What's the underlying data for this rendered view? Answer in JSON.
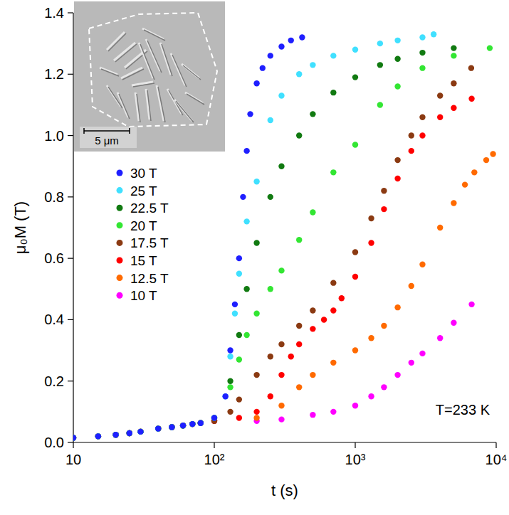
{
  "chart_data": {
    "type": "scatter",
    "x_label": "t (s)",
    "y_label": "μ₀M (T)",
    "annotation": "T=233 K",
    "inset_scale_label": "5 μm",
    "log": "x",
    "grid": false,
    "legend": "upper left",
    "marker": "circle",
    "xlim": [
      10,
      10000
    ],
    "xticks": [
      10,
      {
        "value": 100,
        "label": "10²"
      },
      {
        "value": 1000,
        "label": "10³"
      },
      {
        "value": 10000,
        "label": "10⁴"
      }
    ],
    "ylim": [
      0,
      1.4
    ],
    "yticks": [
      {
        "value": 0,
        "label": "0.0"
      },
      0.2,
      0.4,
      0.6,
      0.8,
      {
        "value": 1,
        "label": "1.0"
      },
      1.2,
      1.4
    ],
    "series": [
      {
        "name": "30 T",
        "color": "#1f1fff",
        "x": [
          10,
          15,
          20,
          25,
          30,
          40,
          50,
          60,
          70,
          80,
          100,
          120,
          130,
          140,
          150,
          160,
          170,
          180,
          200,
          220,
          250,
          300,
          350,
          420
        ],
        "values": [
          0.015,
          0.02,
          0.025,
          0.03,
          0.035,
          0.045,
          0.05,
          0.055,
          0.06,
          0.063,
          0.08,
          0.15,
          0.3,
          0.45,
          0.6,
          0.8,
          0.95,
          1.07,
          1.17,
          1.22,
          1.26,
          1.29,
          1.31,
          1.32
        ]
      },
      {
        "name": "25 T",
        "color": "#40e0ff",
        "x": [
          10,
          15,
          20,
          25,
          30,
          40,
          50,
          60,
          70,
          80,
          100,
          120,
          130,
          140,
          150,
          170,
          200,
          250,
          300,
          400,
          500,
          700,
          1000,
          1500,
          2000,
          3000,
          3600
        ],
        "values": [
          0.015,
          0.02,
          0.025,
          0.03,
          0.035,
          0.045,
          0.05,
          0.055,
          0.06,
          0.063,
          0.08,
          0.15,
          0.28,
          0.42,
          0.55,
          0.72,
          0.85,
          1.05,
          1.13,
          1.2,
          1.23,
          1.26,
          1.28,
          1.3,
          1.31,
          1.32,
          1.33
        ]
      },
      {
        "name": "22.5 T",
        "color": "#117a11",
        "x": [
          10,
          15,
          20,
          25,
          30,
          40,
          50,
          60,
          70,
          80,
          100,
          130,
          150,
          170,
          200,
          250,
          300,
          400,
          500,
          700,
          1000,
          1500,
          2000,
          3000,
          5000
        ],
        "values": [
          0.015,
          0.02,
          0.025,
          0.03,
          0.035,
          0.045,
          0.05,
          0.055,
          0.06,
          0.063,
          0.08,
          0.2,
          0.35,
          0.5,
          0.65,
          0.8,
          0.9,
          1.0,
          1.07,
          1.14,
          1.19,
          1.23,
          1.25,
          1.27,
          1.285
        ]
      },
      {
        "name": "20 T",
        "color": "#33e633",
        "x": [
          10,
          15,
          20,
          25,
          30,
          40,
          50,
          60,
          70,
          80,
          100,
          130,
          150,
          170,
          200,
          250,
          300,
          400,
          500,
          700,
          1000,
          1500,
          2000,
          3000,
          5000,
          9000
        ],
        "values": [
          0.015,
          0.02,
          0.025,
          0.03,
          0.035,
          0.045,
          0.05,
          0.055,
          0.06,
          0.063,
          0.08,
          0.18,
          0.27,
          0.35,
          0.42,
          0.5,
          0.56,
          0.66,
          0.75,
          0.88,
          0.97,
          1.1,
          1.16,
          1.22,
          1.26,
          1.285
        ]
      },
      {
        "name": "17.5 T",
        "color": "#8b3a12",
        "x": [
          10,
          15,
          20,
          25,
          30,
          40,
          50,
          60,
          70,
          80,
          100,
          130,
          150,
          200,
          250,
          300,
          400,
          500,
          700,
          1000,
          1300,
          1600,
          2000,
          2500,
          3000,
          4000,
          5000,
          6650
        ],
        "values": [
          0.015,
          0.02,
          0.025,
          0.03,
          0.035,
          0.045,
          0.05,
          0.055,
          0.06,
          0.063,
          0.07,
          0.1,
          0.14,
          0.22,
          0.28,
          0.32,
          0.38,
          0.43,
          0.52,
          0.62,
          0.73,
          0.82,
          0.92,
          1.0,
          1.06,
          1.13,
          1.17,
          1.22
        ]
      },
      {
        "name": "15 T",
        "color": "#ff0000",
        "x": [
          10,
          15,
          20,
          25,
          30,
          40,
          50,
          60,
          70,
          80,
          100,
          150,
          200,
          250,
          300,
          350,
          400,
          500,
          600,
          700,
          800,
          1000,
          1300,
          1600,
          2000,
          2500,
          3000,
          4000,
          5000,
          6700
        ],
        "values": [
          0.015,
          0.02,
          0.025,
          0.03,
          0.035,
          0.045,
          0.05,
          0.055,
          0.06,
          0.063,
          0.07,
          0.08,
          0.1,
          0.15,
          0.22,
          0.28,
          0.32,
          0.37,
          0.4,
          0.43,
          0.47,
          0.54,
          0.65,
          0.76,
          0.86,
          0.95,
          1.0,
          1.06,
          1.09,
          1.12
        ]
      },
      {
        "name": "12.5 T",
        "color": "#ff6a00",
        "x": [
          10,
          15,
          20,
          25,
          30,
          40,
          50,
          60,
          70,
          80,
          100,
          200,
          300,
          400,
          500,
          700,
          1000,
          1300,
          1600,
          2000,
          2500,
          3000,
          4000,
          5000,
          6000,
          7000,
          8500,
          9500
        ],
        "values": [
          0.015,
          0.02,
          0.025,
          0.03,
          0.035,
          0.045,
          0.05,
          0.055,
          0.06,
          0.063,
          0.07,
          0.08,
          0.12,
          0.18,
          0.22,
          0.26,
          0.3,
          0.34,
          0.38,
          0.44,
          0.51,
          0.58,
          0.7,
          0.78,
          0.84,
          0.88,
          0.92,
          0.94
        ]
      },
      {
        "name": "10 T",
        "color": "#ff00ff",
        "x": [
          10,
          15,
          20,
          25,
          30,
          40,
          50,
          60,
          70,
          80,
          100,
          200,
          300,
          500,
          700,
          1000,
          1300,
          1600,
          2000,
          2500,
          3000,
          4000,
          5000,
          6700
        ],
        "values": [
          0.015,
          0.02,
          0.025,
          0.03,
          0.035,
          0.045,
          0.05,
          0.055,
          0.06,
          0.063,
          0.07,
          0.07,
          0.075,
          0.09,
          0.1,
          0.12,
          0.15,
          0.18,
          0.22,
          0.26,
          0.29,
          0.34,
          0.39,
          0.45
        ]
      }
    ]
  }
}
